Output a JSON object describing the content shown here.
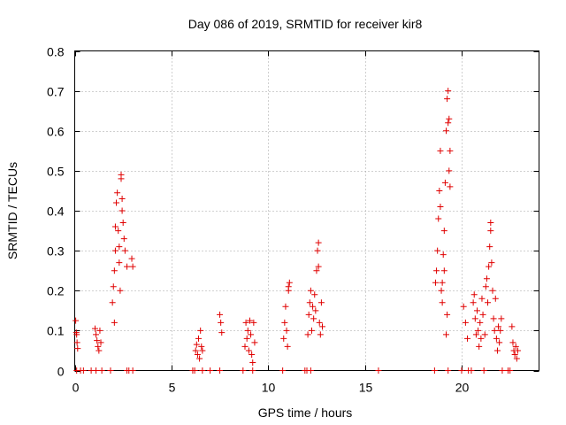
{
  "chart_data": {
    "type": "scatter",
    "title": "Day 086 of 2019, SRMTID for receiver kir8",
    "xlabel": "GPS time / hours",
    "ylabel": "SRMTID / TECUs",
    "xlim": [
      0,
      24
    ],
    "ylim": [
      0,
      0.8
    ],
    "x_ticks": [
      0,
      5,
      10,
      15,
      20
    ],
    "x_tick_labels": [
      "0",
      "5",
      "10",
      "15",
      "20"
    ],
    "y_ticks": [
      0,
      0.1,
      0.2,
      0.3,
      0.4,
      0.5,
      0.6,
      0.7,
      0.8
    ],
    "y_tick_labels": [
      "0",
      "0.1",
      "0.2",
      "0.3",
      "0.4",
      "0.5",
      "0.6",
      "0.7",
      "0.8"
    ],
    "grid": true,
    "marker": "+",
    "marker_color": "#e00000",
    "series": [
      {
        "name": "SRMTID",
        "points": [
          [
            0.05,
            0.125
          ],
          [
            0.08,
            0.095
          ],
          [
            0.1,
            0.09
          ],
          [
            0.12,
            0.07
          ],
          [
            0.15,
            0.055
          ],
          [
            0.1,
            0.0
          ],
          [
            0.3,
            0.0
          ],
          [
            0.45,
            0.0
          ],
          [
            0.85,
            0.0
          ],
          [
            1.05,
            0.105
          ],
          [
            1.1,
            0.09
          ],
          [
            1.15,
            0.075
          ],
          [
            1.2,
            0.06
          ],
          [
            1.25,
            0.05
          ],
          [
            1.3,
            0.1
          ],
          [
            1.35,
            0.07
          ],
          [
            1.1,
            0.0
          ],
          [
            1.4,
            0.0
          ],
          [
            1.85,
            0.0
          ],
          [
            1.95,
            0.17
          ],
          [
            2.0,
            0.21
          ],
          [
            2.05,
            0.25
          ],
          [
            2.1,
            0.3
          ],
          [
            2.1,
            0.36
          ],
          [
            2.15,
            0.42
          ],
          [
            2.2,
            0.445
          ],
          [
            2.25,
            0.35
          ],
          [
            2.3,
            0.27
          ],
          [
            2.35,
            0.2
          ],
          [
            2.4,
            0.48
          ],
          [
            2.4,
            0.49
          ],
          [
            2.45,
            0.4
          ],
          [
            2.5,
            0.37
          ],
          [
            2.55,
            0.33
          ],
          [
            2.6,
            0.3
          ],
          [
            2.7,
            0.26
          ],
          [
            2.05,
            0.12
          ],
          [
            2.3,
            0.31
          ],
          [
            2.45,
            0.43
          ],
          [
            2.95,
            0.28
          ],
          [
            3.0,
            0.26
          ],
          [
            2.7,
            0.0
          ],
          [
            2.8,
            0.0
          ],
          [
            3.0,
            0.0
          ],
          [
            6.1,
            0.0
          ],
          [
            6.2,
            0.0
          ],
          [
            6.25,
            0.05
          ],
          [
            6.3,
            0.065
          ],
          [
            6.35,
            0.04
          ],
          [
            6.4,
            0.08
          ],
          [
            6.45,
            0.03
          ],
          [
            6.5,
            0.1
          ],
          [
            6.55,
            0.06
          ],
          [
            6.6,
            0.05
          ],
          [
            6.6,
            0.0
          ],
          [
            7.0,
            0.0
          ],
          [
            7.5,
            0.14
          ],
          [
            7.55,
            0.12
          ],
          [
            7.6,
            0.095
          ],
          [
            7.5,
            0.0
          ],
          [
            8.7,
            0.0
          ],
          [
            8.8,
            0.06
          ],
          [
            8.85,
            0.12
          ],
          [
            8.9,
            0.08
          ],
          [
            8.95,
            0.1
          ],
          [
            9.0,
            0.05
          ],
          [
            9.05,
            0.125
          ],
          [
            9.1,
            0.09
          ],
          [
            9.15,
            0.04
          ],
          [
            9.2,
            0.02
          ],
          [
            9.25,
            0.12
          ],
          [
            9.3,
            0.07
          ],
          [
            9.2,
            0.0
          ],
          [
            10.75,
            0.0
          ],
          [
            10.8,
            0.08
          ],
          [
            10.85,
            0.12
          ],
          [
            10.9,
            0.16
          ],
          [
            10.95,
            0.1
          ],
          [
            11.0,
            0.06
          ],
          [
            11.05,
            0.2
          ],
          [
            11.1,
            0.22
          ],
          [
            11.05,
            0.21
          ],
          [
            11.9,
            0.0
          ],
          [
            12.0,
            0.0
          ],
          [
            12.05,
            0.09
          ],
          [
            12.1,
            0.14
          ],
          [
            12.15,
            0.17
          ],
          [
            12.2,
            0.2
          ],
          [
            12.25,
            0.1
          ],
          [
            12.3,
            0.16
          ],
          [
            12.35,
            0.13
          ],
          [
            12.4,
            0.19
          ],
          [
            12.45,
            0.15
          ],
          [
            12.5,
            0.25
          ],
          [
            12.55,
            0.3
          ],
          [
            12.6,
            0.32
          ],
          [
            12.6,
            0.26
          ],
          [
            12.65,
            0.12
          ],
          [
            12.7,
            0.09
          ],
          [
            12.75,
            0.17
          ],
          [
            12.8,
            0.11
          ],
          [
            12.2,
            0.0
          ],
          [
            15.7,
            0.0
          ],
          [
            18.6,
            0.0
          ],
          [
            18.65,
            0.22
          ],
          [
            18.7,
            0.25
          ],
          [
            18.75,
            0.3
          ],
          [
            18.8,
            0.38
          ],
          [
            18.85,
            0.45
          ],
          [
            18.9,
            0.55
          ],
          [
            18.95,
            0.2
          ],
          [
            19.0,
            0.17
          ],
          [
            19.05,
            0.29
          ],
          [
            19.1,
            0.35
          ],
          [
            19.15,
            0.47
          ],
          [
            19.2,
            0.6
          ],
          [
            19.25,
            0.68
          ],
          [
            19.3,
            0.7
          ],
          [
            19.3,
            0.62
          ],
          [
            19.35,
            0.5
          ],
          [
            19.4,
            0.46
          ],
          [
            19.2,
            0.09
          ],
          [
            18.9,
            0.41
          ],
          [
            19.0,
            0.22
          ],
          [
            19.1,
            0.25
          ],
          [
            19.25,
            0.14
          ],
          [
            19.35,
            0.63
          ],
          [
            19.4,
            0.55
          ],
          [
            19.3,
            0.0
          ],
          [
            20.0,
            0.0
          ],
          [
            20.1,
            0.16
          ],
          [
            20.2,
            0.12
          ],
          [
            20.3,
            0.08
          ],
          [
            20.35,
            0.0
          ],
          [
            20.5,
            0.0
          ],
          [
            20.6,
            0.17
          ],
          [
            20.65,
            0.19
          ],
          [
            20.7,
            0.13
          ],
          [
            20.75,
            0.09
          ],
          [
            20.8,
            0.15
          ],
          [
            20.85,
            0.1
          ],
          [
            20.9,
            0.06
          ],
          [
            20.95,
            0.12
          ],
          [
            21.0,
            0.08
          ],
          [
            21.05,
            0.18
          ],
          [
            21.1,
            0.14
          ],
          [
            21.15,
            0.0
          ],
          [
            21.2,
            0.09
          ],
          [
            21.25,
            0.21
          ],
          [
            21.3,
            0.23
          ],
          [
            21.35,
            0.17
          ],
          [
            21.4,
            0.26
          ],
          [
            21.45,
            0.31
          ],
          [
            21.5,
            0.35
          ],
          [
            21.5,
            0.37
          ],
          [
            21.55,
            0.27
          ],
          [
            21.6,
            0.2
          ],
          [
            21.65,
            0.13
          ],
          [
            21.7,
            0.1
          ],
          [
            21.75,
            0.18
          ],
          [
            21.8,
            0.08
          ],
          [
            21.85,
            0.05
          ],
          [
            21.9,
            0.11
          ],
          [
            21.95,
            0.07
          ],
          [
            22.0,
            0.1
          ],
          [
            22.05,
            0.13
          ],
          [
            22.1,
            0.0
          ],
          [
            22.4,
            0.0
          ],
          [
            22.5,
            0.0
          ],
          [
            22.6,
            0.11
          ],
          [
            22.65,
            0.07
          ],
          [
            22.7,
            0.05
          ],
          [
            22.75,
            0.04
          ],
          [
            22.8,
            0.06
          ],
          [
            22.85,
            0.03
          ],
          [
            22.9,
            0.05
          ]
        ]
      }
    ]
  }
}
